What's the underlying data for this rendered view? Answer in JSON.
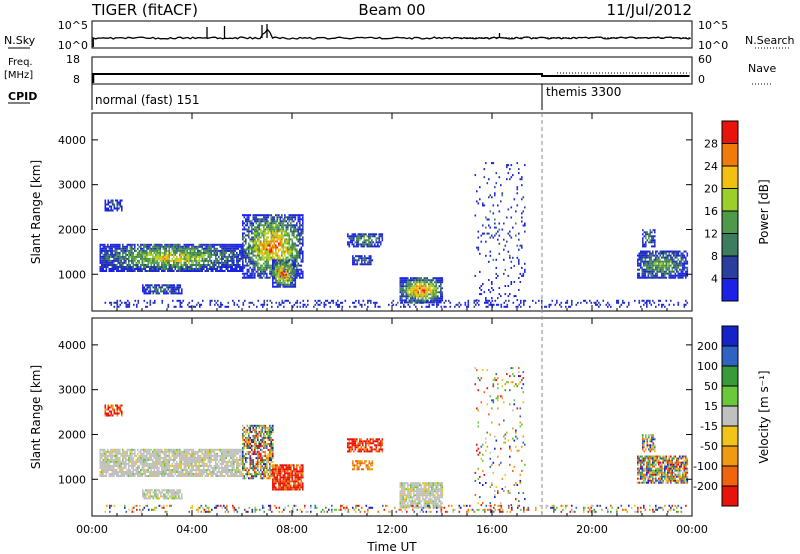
{
  "header": {
    "radar": "TIGER (fitACF)",
    "beam": "Beam 00",
    "date": "11/Jul/2012"
  },
  "top_panels": {
    "nsky_label": "N.Sky",
    "nsky_ticks": [
      "10^5",
      "10^0"
    ],
    "nsearch_label": "N.Search",
    "nsearch_ticks": [
      "10^5",
      "10^0"
    ],
    "freq_label": "Freq.",
    "freq_unit": "[MHz]",
    "freq_ticks": [
      "18",
      "8"
    ],
    "nave_label": "Nave",
    "nave_ticks": [
      "60",
      "0"
    ],
    "cpid_label": "CPID",
    "cpid_modes": [
      {
        "label": "normal (fast) 151",
        "start_hour": 0
      },
      {
        "label": "themis 3300",
        "start_hour": 18
      }
    ]
  },
  "chart_data": [
    {
      "type": "heatmap",
      "panel": "power",
      "ylabel": "Slant Range [km]",
      "ylim": [
        180,
        4600
      ],
      "yticks": [
        1000,
        2000,
        3000,
        4000
      ],
      "xlim": [
        0,
        24
      ],
      "colorbar_label": "Power [dB]",
      "colorbar_ticks": [
        "4",
        "8",
        "12",
        "16",
        "20",
        "24",
        "28"
      ],
      "colorbar_range": [
        0,
        32
      ],
      "colors": [
        "#1a22e8",
        "#2a3f9c",
        "#3b7d5e",
        "#4f9a4a",
        "#9ccf2a",
        "#f2c011",
        "#f07a0a",
        "#e8140c"
      ],
      "blobs": [
        {
          "x0": 0.3,
          "x1": 6.0,
          "y0": 1050,
          "y1": 1650,
          "p": 0.85,
          "v": 0.7
        },
        {
          "x0": 2.0,
          "x1": 3.6,
          "y0": 550,
          "y1": 750,
          "p": 0.7,
          "v": 0.3
        },
        {
          "x0": 0.5,
          "x1": 1.2,
          "y0": 2400,
          "y1": 2650,
          "p": 0.6,
          "v": 0.2
        },
        {
          "x0": 6.0,
          "x1": 8.4,
          "y0": 900,
          "y1": 2300,
          "p": 0.75,
          "v": 0.9
        },
        {
          "x0": 7.2,
          "x1": 8.1,
          "y0": 700,
          "y1": 1300,
          "p": 0.8,
          "v": 1.0
        },
        {
          "x0": 10.2,
          "x1": 11.6,
          "y0": 1600,
          "y1": 1900,
          "p": 0.7,
          "v": 0.5
        },
        {
          "x0": 10.4,
          "x1": 11.2,
          "y0": 1200,
          "y1": 1400,
          "p": 0.7,
          "v": 0.4
        },
        {
          "x0": 12.3,
          "x1": 14.0,
          "y0": 350,
          "y1": 900,
          "p": 0.85,
          "v": 0.95
        },
        {
          "x0": 21.8,
          "x1": 23.8,
          "y0": 900,
          "y1": 1500,
          "p": 0.8,
          "v": 0.55
        },
        {
          "x0": 22.0,
          "x1": 22.5,
          "y0": 1600,
          "y1": 2000,
          "p": 0.6,
          "v": 0.45
        },
        {
          "x0": 15.3,
          "x1": 17.3,
          "y0": 400,
          "y1": 3500,
          "p": 0.08,
          "v": 0.2
        },
        {
          "x0": 0.5,
          "x1": 23.8,
          "y0": 250,
          "y1": 400,
          "p": 0.25,
          "v": 0.15
        }
      ]
    },
    {
      "type": "heatmap",
      "panel": "velocity",
      "ylabel": "Slant Range [km]",
      "ylim": [
        180,
        4600
      ],
      "yticks": [
        1000,
        2000,
        3000,
        4000
      ],
      "xlim": [
        0,
        24
      ],
      "xticks": [
        "00:00",
        "04:00",
        "08:00",
        "12:00",
        "16:00",
        "20:00",
        "00:00"
      ],
      "xlabel": "Time UT",
      "colorbar_label": "Velocity [m s⁻¹]",
      "colorbar_ticks": [
        "200",
        "100",
        "50",
        "15",
        "-15",
        "-50",
        "-100",
        "-200"
      ],
      "colorbar_range": [
        -250,
        250
      ],
      "colors": [
        "#1424c8",
        "#2f63c2",
        "#3a9a3a",
        "#6ac83c",
        "#c0c0c0",
        "#f0c418",
        "#f09a14",
        "#f0640e",
        "#e8140c"
      ],
      "blobs": [
        {
          "x0": 0.3,
          "x1": 6.0,
          "y0": 1050,
          "y1": 1650,
          "p": 0.85,
          "c": "gray"
        },
        {
          "x0": 2.0,
          "x1": 3.6,
          "y0": 550,
          "y1": 750,
          "p": 0.7,
          "c": "gray"
        },
        {
          "x0": 0.5,
          "x1": 1.2,
          "y0": 2400,
          "y1": 2650,
          "p": 0.6,
          "c": "red"
        },
        {
          "x0": 6.0,
          "x1": 7.2,
          "y0": 1000,
          "y1": 2200,
          "p": 0.7,
          "c": "mixed"
        },
        {
          "x0": 7.2,
          "x1": 8.4,
          "y0": 750,
          "y1": 1300,
          "p": 0.85,
          "c": "red"
        },
        {
          "x0": 10.2,
          "x1": 11.6,
          "y0": 1600,
          "y1": 1900,
          "p": 0.7,
          "c": "red"
        },
        {
          "x0": 10.4,
          "x1": 11.2,
          "y0": 1200,
          "y1": 1400,
          "p": 0.7,
          "c": "orange"
        },
        {
          "x0": 12.3,
          "x1": 14.0,
          "y0": 350,
          "y1": 900,
          "p": 0.85,
          "c": "gray"
        },
        {
          "x0": 21.8,
          "x1": 23.8,
          "y0": 900,
          "y1": 1500,
          "p": 0.8,
          "c": "mixed"
        },
        {
          "x0": 22.0,
          "x1": 22.5,
          "y0": 1600,
          "y1": 2000,
          "p": 0.6,
          "c": "mixed"
        },
        {
          "x0": 15.3,
          "x1": 17.3,
          "y0": 400,
          "y1": 3500,
          "p": 0.08,
          "c": "mixed"
        },
        {
          "x0": 0.5,
          "x1": 23.8,
          "y0": 250,
          "y1": 400,
          "p": 0.25,
          "c": "mixed"
        }
      ]
    }
  ]
}
